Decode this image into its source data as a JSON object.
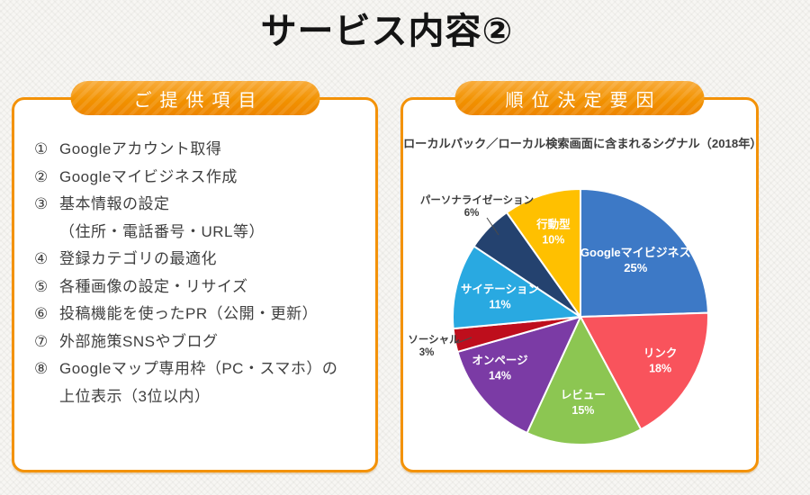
{
  "page": {
    "title": "サービス内容②"
  },
  "left_panel": {
    "header": "ご提供項目",
    "items": [
      {
        "num": "①",
        "lines": [
          "Googleアカウント取得"
        ]
      },
      {
        "num": "②",
        "lines": [
          "Googleマイビジネス作成"
        ]
      },
      {
        "num": "③",
        "lines": [
          "基本情報の設定",
          "（住所・電話番号・URL等）"
        ]
      },
      {
        "num": "④",
        "lines": [
          "登録カテゴリの最適化"
        ]
      },
      {
        "num": "⑤",
        "lines": [
          "各種画像の設定・リサイズ"
        ]
      },
      {
        "num": "⑥",
        "lines": [
          "投稿機能を使ったPR（公開・更新）"
        ]
      },
      {
        "num": "⑦",
        "lines": [
          "外部施策SNSやブログ"
        ]
      },
      {
        "num": "⑧",
        "lines": [
          "Googleマップ専用枠（PC・スマホ）の",
          "上位表示（3位以内）"
        ]
      }
    ]
  },
  "right_panel": {
    "header": "順位決定要因"
  },
  "chart_data": {
    "type": "pie",
    "title": "ローカルパック／ローカル検索画面に含まれるシグナル（2018年）",
    "start_angle_deg": 0,
    "direction": "clockwise",
    "legend_position": "none",
    "slices": [
      {
        "label": "Googleマイビジネス",
        "value": 25,
        "unit": "%",
        "color": "#3D79C6",
        "label_pos": "inside"
      },
      {
        "label": "リンク",
        "value": 18,
        "unit": "%",
        "color": "#F9535C",
        "label_pos": "inside"
      },
      {
        "label": "レビュー",
        "value": 15,
        "unit": "%",
        "color": "#8CC652",
        "label_pos": "inside"
      },
      {
        "label": "オンページ",
        "value": 14,
        "unit": "%",
        "color": "#7B3BA5",
        "label_pos": "inside"
      },
      {
        "label": "ソーシャル",
        "value": 3,
        "unit": "%",
        "color": "#BE0E1C",
        "label_pos": "outside"
      },
      {
        "label": "サイテーション",
        "value": 11,
        "unit": "%",
        "color": "#29A9E1",
        "label_pos": "inside"
      },
      {
        "label": "パーソナライゼーション",
        "value": 6,
        "unit": "%",
        "color": "#24426F",
        "label_pos": "outside"
      },
      {
        "label": "行動型",
        "value": 10,
        "unit": "%",
        "color": "#FFC000",
        "label_pos": "inside"
      }
    ]
  },
  "colors": {
    "panel_border": "#F39208",
    "pill_orange_top": "#F8AC3C",
    "pill_orange_bottom": "#ED8500",
    "title_text": "#141414",
    "list_text": "#3f3f3f",
    "chart_title_text": "#3d3d3d"
  }
}
